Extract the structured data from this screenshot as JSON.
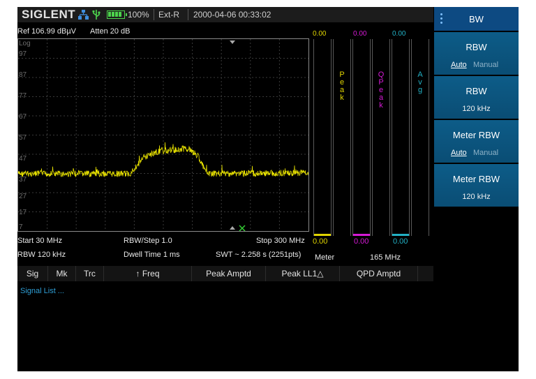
{
  "status": {
    "brand": "SIGLENT",
    "battery": "100%",
    "ext_ref": "Ext-R",
    "datetime": "2000-04-06 00:33:02"
  },
  "meas": {
    "ref": "Ref  106.99 dBµV",
    "atten": "Atten  20 dB",
    "scale": "Log",
    "y_ticks": [
      "97",
      "87",
      "77",
      "67",
      "57",
      "47",
      "37",
      "27",
      "17",
      "7"
    ],
    "start": "Start  30 MHz",
    "rbw_step": "RBW/Step  1.0",
    "stop": "Stop  300 MHz",
    "rbw": "RBW  120 kHz",
    "dwell": "Dwell Time  1 ms",
    "swt": "SWT ~  2.258 s (2251pts)"
  },
  "meters": {
    "items": [
      {
        "name": "Peak",
        "top": "0.00",
        "bottom": "0.00",
        "color": "#e0d400"
      },
      {
        "name": "QPeak",
        "top": "0.00",
        "bottom": "0.00",
        "color": "#d61ad6"
      },
      {
        "name": "Avg",
        "top": "0.00",
        "bottom": "0.00",
        "color": "#22b0c4"
      }
    ],
    "meter_label": "Meter",
    "meter_freq": "165 MHz"
  },
  "menu": {
    "sig": "Sig",
    "mk": "Mk",
    "trc": "Trc",
    "freq": "↑ Freq",
    "peak_amptd": "Peak Amptd",
    "peak_ll1": "Peak LL1△",
    "qpd_amptd": "QPD Amptd",
    "signal_list": "Signal List ..."
  },
  "softkeys": {
    "title": "BW",
    "rbw_mode_label": "RBW",
    "auto": "Auto",
    "manual": "Manual",
    "rbw_label": "RBW",
    "rbw_value": "120 kHz",
    "meter_rbw_mode_label": "Meter RBW",
    "meter_rbw_label": "Meter RBW",
    "meter_rbw_value": "120 kHz"
  },
  "colors": {
    "trace": "#e6e000",
    "softkey": "#0a5a86"
  }
}
